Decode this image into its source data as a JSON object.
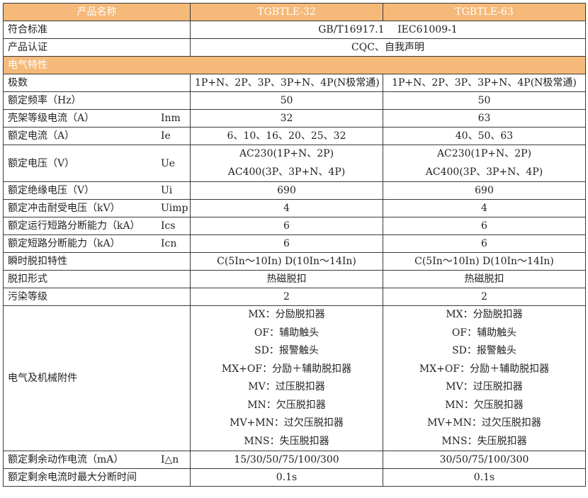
{
  "header": {
    "label": "产品名称",
    "col1": "TGBTLE-32",
    "col2": "TGBTLE-63"
  },
  "standard": {
    "label": "符合标准",
    "value": "GB/T16917.1　 IEC61009-1"
  },
  "certification": {
    "label": "产品认证",
    "value": "CQC、自我声明"
  },
  "section": "电气特性",
  "rows": [
    {
      "label": "极数",
      "sym": "",
      "v1": [
        "1P+N、2P、3P、3P+N、4P(N极常通)"
      ],
      "v2": [
        "1P+N、2P、3P、3P+N、4P(N极常通)"
      ]
    },
    {
      "label": "额定频率（Hz）",
      "sym": "",
      "v1": [
        "50"
      ],
      "v2": [
        "50"
      ]
    },
    {
      "label": "壳架等级电流（A）",
      "sym": "Inm",
      "v1": [
        "32"
      ],
      "v2": [
        "63"
      ]
    },
    {
      "label": "额定电流（A）",
      "sym": "Ie",
      "v1": [
        "6、10、16、20、25、32"
      ],
      "v2": [
        "40、50、63"
      ]
    },
    {
      "label": "额定电压（V）",
      "sym": "Ue",
      "v1": [
        "AC230(1P+N、2P)",
        "AC400(3P、3P+N、4P)"
      ],
      "v2": [
        "AC230(1P+N、2P)",
        "AC400(3P、3P+N、4P)"
      ]
    },
    {
      "label": "额定绝缘电压（V）",
      "sym": "Ui",
      "v1": [
        "690"
      ],
      "v2": [
        "690"
      ]
    },
    {
      "label": "额定冲击耐受电压（kV）",
      "sym": "Uimp",
      "v1": [
        "4"
      ],
      "v2": [
        "4"
      ]
    },
    {
      "label": "额定运行短路分断能力（kA）",
      "sym": "Ics",
      "v1": [
        "6"
      ],
      "v2": [
        "6"
      ]
    },
    {
      "label": "额定短路分断能力（kA）",
      "sym": "Icn",
      "v1": [
        "6"
      ],
      "v2": [
        "6"
      ]
    },
    {
      "label": "瞬时脱扣特性",
      "sym": "",
      "v1": [
        "C(5In～10In) D(10In～14In)"
      ],
      "v2": [
        "C(5In～10In) D(10In～14In)"
      ]
    },
    {
      "label": "脱扣形式",
      "sym": "",
      "v1": [
        "热磁脱扣"
      ],
      "v2": [
        "热磁脱扣"
      ]
    },
    {
      "label": "污染等级",
      "sym": "",
      "v1": [
        "2"
      ],
      "v2": [
        "2"
      ]
    },
    {
      "label": "电气及机械附件",
      "sym": "",
      "v1": [
        "MX：分励脱扣器",
        "OF：辅助触头",
        "SD：报警触头",
        "MX+OF：分励＋辅助脱扣器",
        "MV：过压脱扣器",
        "MN：欠压脱扣器",
        "MV+MN：过欠压脱扣器",
        "MNS：失压脱扣器"
      ],
      "v2": [
        "MX：分励脱扣器",
        "OF：辅助触头",
        "SD：报警触头",
        "MX+OF：分励＋辅助脱扣器",
        "MV：过压脱扣器",
        "MN：欠压脱扣器",
        "MV+MN：过欠压脱扣器",
        "MNS：失压脱扣器"
      ]
    },
    {
      "label": "额定剩余动作电流（mA）",
      "sym": "I△n",
      "v1": [
        "15/30/50/75/100/300"
      ],
      "v2": [
        "30/50/75/100/300"
      ]
    },
    {
      "label": "额定剩余电流时最大分断时间",
      "sym": "",
      "v1": [
        "0.1s"
      ],
      "v2": [
        "0.1s"
      ]
    }
  ]
}
